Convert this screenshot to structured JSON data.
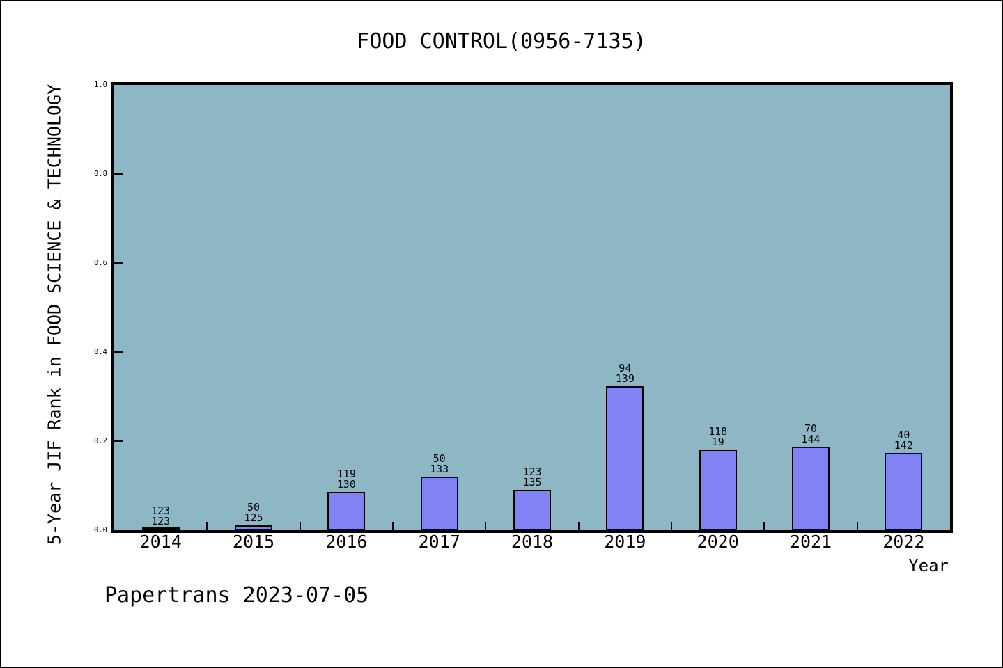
{
  "footer": {
    "text": "Papertrans 2023-07-05"
  },
  "chart_data": {
    "type": "bar",
    "title": "FOOD CONTROL(0956-7135)",
    "xlabel": "Year",
    "ylabel": "5-Year JIF Rank in FOOD SCIENCE & TECHNOLOGY",
    "ylim": [
      0.0,
      1.0
    ],
    "grid": false,
    "legend": "none",
    "categories": [
      "2014",
      "2015",
      "2016",
      "2017",
      "2018",
      "2019",
      "2020",
      "2021",
      "2022"
    ],
    "values": [
      0.003,
      0.011,
      0.086,
      0.12,
      0.09,
      0.324,
      0.181,
      0.188,
      0.174
    ],
    "bar_labels": [
      [
        "123",
        "123"
      ],
      [
        "50",
        "125"
      ],
      [
        "119",
        "130"
      ],
      [
        "50",
        "133"
      ],
      [
        "123",
        "135"
      ],
      [
        "94",
        "139"
      ],
      [
        "118",
        "19"
      ],
      [
        "70",
        "144"
      ],
      [
        "40",
        "142"
      ]
    ],
    "yticks": [
      {
        "label": "0.0",
        "value": 0.0
      },
      {
        "label": "0.2",
        "value": 0.2
      },
      {
        "label": "0.4",
        "value": 0.4
      },
      {
        "label": "0.6",
        "value": 0.6
      },
      {
        "label": "0.8",
        "value": 0.8
      },
      {
        "label": "1.0",
        "value": 1.0
      }
    ],
    "colors": {
      "plot_bg": "#8db7c4",
      "bar_fill": "#8182f3",
      "bar_border": "#000000",
      "text": "#000000"
    }
  }
}
